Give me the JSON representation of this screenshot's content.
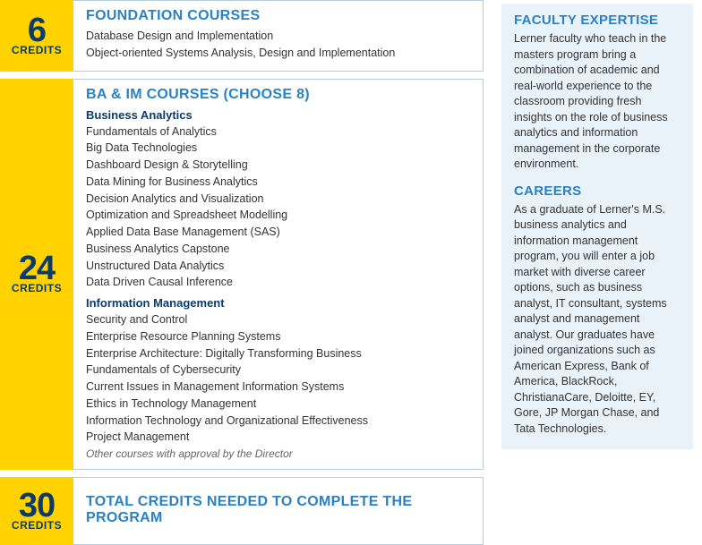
{
  "colors": {
    "yellow": "#ffd200",
    "blue_title": "#2a81c4",
    "blue_dark": "#0b3a6b",
    "panel_bg": "#eaf2f9",
    "border": "#b8cde0"
  },
  "credits_label": "CREDITS",
  "sections": {
    "foundation": {
      "credits": "6",
      "title": "FOUNDATION COURSES",
      "courses": [
        "Database Design and Implementation",
        "Object-oriented Systems Analysis, Design and Implementation"
      ]
    },
    "choose": {
      "credits": "24",
      "title": "BA & IM COURSES (CHOOSE 8)",
      "group1": {
        "heading": "Business Analytics",
        "courses": [
          "Fundamentals of Analytics",
          "Big Data Technologies",
          "Dashboard Design & Storytelling",
          "Data Mining for Business Analytics",
          "Decision Analytics and Visualization",
          "Optimization and Spreadsheet Modelling",
          "Applied Data Base Management (SAS)",
          "Business Analytics Capstone",
          "Unstructured Data Analytics",
          "Data Driven Causal Inference"
        ]
      },
      "group2": {
        "heading": "Information Management",
        "courses": [
          "Security and Control",
          "Enterprise Resource Planning Systems",
          "Enterprise Architecture: Digitally Transforming Business",
          "Fundamentals of Cybersecurity",
          "Current Issues in Management Information Systems",
          "Ethics in Technology Management",
          "Information Technology and Organizational Effectiveness",
          "Project Management"
        ],
        "note": "Other courses with approval by the Director"
      }
    },
    "total": {
      "credits": "30",
      "title": "TOTAL CREDITS NEEDED TO COMPLETE THE PROGRAM"
    }
  },
  "sidebar": {
    "expertise": {
      "title": "FACULTY EXPERTISE",
      "text": "Lerner faculty who teach in the masters program bring a combination of academic and real-world experience to the classroom providing fresh insights on the role of business analytics and information management in the corporate environment."
    },
    "careers": {
      "title": "CAREERS",
      "text": "As a graduate of Lerner's M.S. business analytics and information management program, you will enter a job market with diverse career options, such as business analyst, IT consultant, systems analyst and management analyst. Our graduates have joined organizations such as American Express, Bank of America, BlackRock, ChristianaCare, Deloitte, EY, Gore, JP Morgan Chase, and Tata Technologies."
    }
  }
}
